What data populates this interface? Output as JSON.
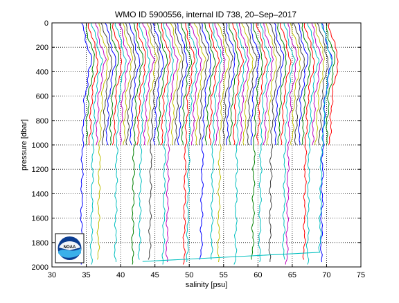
{
  "chart_data": {
    "type": "line",
    "title": "WMO ID 5900556, internal ID 738, 20–Sep–2017",
    "xlabel": "salinity [psu]",
    "ylabel": "pressure [dbar]",
    "xlim": [
      30,
      75
    ],
    "ylim": [
      2000,
      0
    ],
    "y_reversed": true,
    "grid": "dotted",
    "xticks": [
      30,
      35,
      40,
      45,
      50,
      55,
      60,
      65,
      70,
      75
    ],
    "yticks": [
      0,
      200,
      400,
      600,
      800,
      1000,
      1200,
      1400,
      1600,
      1800,
      2000
    ],
    "profile_offset_psu": 0.5,
    "series_colors": [
      "#0000ff",
      "#008000",
      "#ff0000",
      "#00bfbf",
      "#bf00bf",
      "#bfbf00",
      "#404040"
    ],
    "deep_profile_pressure_max": 1980,
    "shallow_profile_pressure_max": 1000,
    "series_start_salinity": 35.0,
    "series_count": 73,
    "logo_text": "NOAA"
  }
}
